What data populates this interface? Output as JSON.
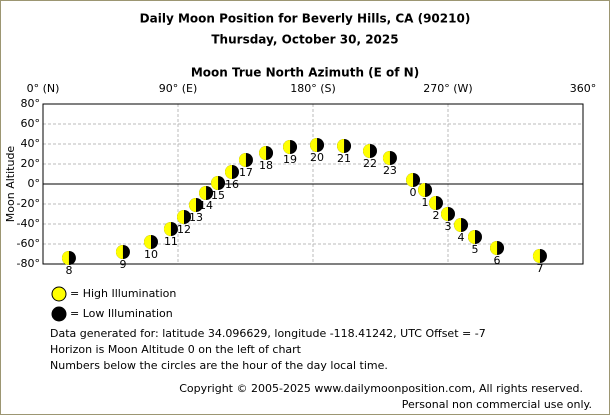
{
  "chart_data": {
    "type": "scatter",
    "title": "Daily Moon Position for Beverly Hills, CA (90210)",
    "subtitle": "Thursday, October 30, 2025",
    "x_label": "Moon True North Azimuth (E of N)",
    "y_label": "Moon Altitude",
    "labels": [
      "0",
      "1",
      "2",
      "3",
      "4",
      "5",
      "6",
      "7",
      "8",
      "9",
      "10",
      "11",
      "12",
      "13",
      "14",
      "15",
      "16",
      "17",
      "18",
      "19",
      "20",
      "21",
      "22",
      "23"
    ],
    "x": [
      246.7,
      254.7,
      262,
      270,
      278.7,
      288,
      302.7,
      331.3,
      17.3,
      53.3,
      72,
      85.3,
      94,
      102,
      108.7,
      116.7,
      126,
      135.3,
      148.7,
      164.7,
      182.7,
      200.7,
      218,
      231.3
    ],
    "values": [
      4,
      -6,
      -19,
      -30,
      -41,
      -53,
      -64,
      -72,
      -74,
      -68,
      -58,
      -45,
      -33,
      -21,
      -9,
      1,
      12,
      24,
      31,
      37,
      39,
      38,
      33,
      26
    ],
    "xlim": [
      0,
      360
    ],
    "ylim": [
      -80,
      80
    ],
    "xticks": [
      {
        "value": 0,
        "label": "0° (N)"
      },
      {
        "value": 90,
        "label": "90° (E)"
      },
      {
        "value": 180,
        "label": "180° (S)"
      },
      {
        "value": 270,
        "label": "270° (W)"
      },
      {
        "value": 360,
        "label": "360°"
      }
    ],
    "yticks": [
      {
        "value": 80,
        "label": "80°"
      },
      {
        "value": 60,
        "label": "60°"
      },
      {
        "value": 40,
        "label": "40°"
      },
      {
        "value": 20,
        "label": "20°"
      },
      {
        "value": 0,
        "label": "0°"
      },
      {
        "value": -20,
        "label": "-20°"
      },
      {
        "value": -40,
        "label": "-40°"
      },
      {
        "value": -60,
        "label": "-60°"
      },
      {
        "value": -80,
        "label": "-80°"
      }
    ],
    "grid": true,
    "legend": [
      {
        "name": "= High Illumination",
        "color": "#ffff00"
      },
      {
        "name": "= Low Illumination",
        "color": "#000000"
      }
    ],
    "notes": [
      "Data generated for: latitude 34.096629, longitude -118.41242, UTC Offset = -7",
      "Horizon is Moon Altitude 0 on the left of chart",
      "Numbers below the circles are the hour of the day local time."
    ],
    "copyright": [
      "Copyright © 2005-2025 www.dailymoonposition.com, All rights reserved.",
      "Personal non commercial use only."
    ]
  }
}
